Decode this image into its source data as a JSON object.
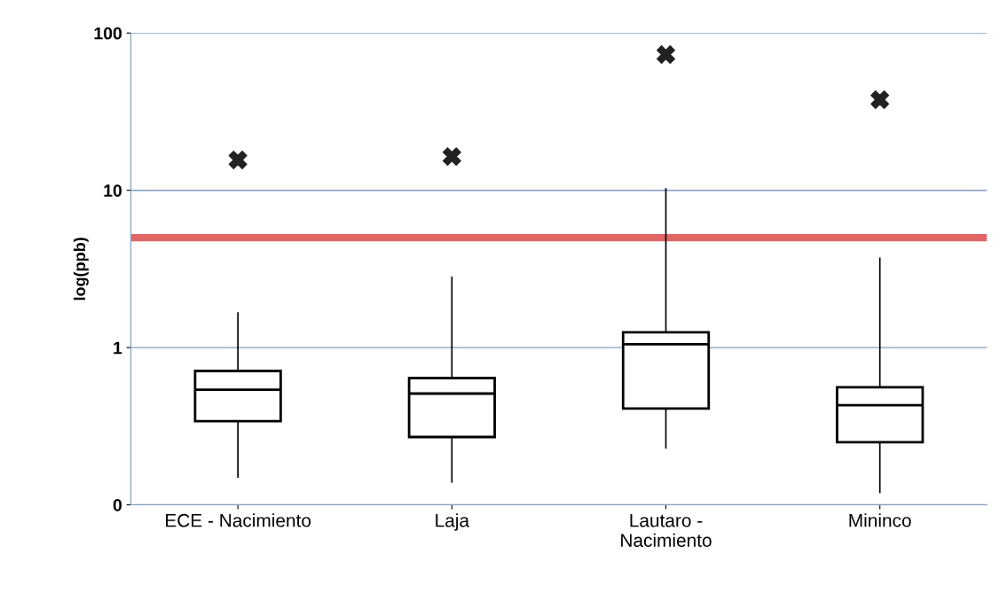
{
  "chart_data": {
    "type": "box",
    "ylabel": "log(ppb)",
    "categories": [
      "ECE - Nacimiento",
      "Laja",
      "Lautaro -\nNacimiento",
      "Mininco"
    ],
    "boxes": [
      {
        "low": 0.15,
        "q1": 0.34,
        "median": 0.54,
        "q3": 0.71,
        "high": 1.66,
        "outliers": [
          15.6
        ]
      },
      {
        "low": 0.14,
        "q1": 0.27,
        "median": 0.51,
        "q3": 0.64,
        "high": 2.8,
        "outliers": [
          16.4
        ]
      },
      {
        "low": 0.23,
        "q1": 0.41,
        "median": 1.05,
        "q3": 1.25,
        "high": 10.2,
        "outliers": [
          73
        ]
      },
      {
        "low": 0.12,
        "q1": 0.25,
        "median": 0.43,
        "q3": 0.56,
        "high": 3.7,
        "outliers": [
          37.7
        ]
      }
    ],
    "color": "#000000",
    "log": "y",
    "ylim": [
      0.1,
      100
    ],
    "yticks": [
      {
        "value": 0.1,
        "label": "0"
      },
      1,
      10,
      100
    ],
    "grid": "y",
    "marker": "cross",
    "ref_lines": [
      {
        "axis": "y",
        "value": 5,
        "label": null,
        "color": "#e06666"
      }
    ]
  }
}
